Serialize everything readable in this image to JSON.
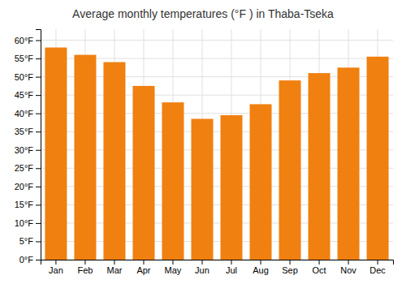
{
  "chart_data": {
    "type": "bar",
    "title": "Average monthly temperatures (°F ) in Thaba-Tseka",
    "categories": [
      "Jan",
      "Feb",
      "Mar",
      "Apr",
      "May",
      "Jun",
      "Jul",
      "Aug",
      "Sep",
      "Oct",
      "Nov",
      "Dec"
    ],
    "values": [
      58,
      56,
      54,
      47.5,
      43,
      38.5,
      39.5,
      42.5,
      49,
      51,
      52.5,
      55.5
    ],
    "color": "#F08010",
    "ylim": [
      0,
      63
    ],
    "yticks": [
      {
        "value": 0,
        "label": "0°F"
      },
      {
        "value": 5,
        "label": "5°F"
      },
      {
        "value": 10,
        "label": "10°F"
      },
      {
        "value": 15,
        "label": "15°F"
      },
      {
        "value": 20,
        "label": "20°F"
      },
      {
        "value": 25,
        "label": "25°F"
      },
      {
        "value": 30,
        "label": "30°F"
      },
      {
        "value": 35,
        "label": "35°F"
      },
      {
        "value": 40,
        "label": "40°F"
      },
      {
        "value": 45,
        "label": "45°F"
      },
      {
        "value": 50,
        "label": "50°F"
      },
      {
        "value": 55,
        "label": "55°F"
      },
      {
        "value": 60,
        "label": "60°F"
      }
    ],
    "grid": true
  }
}
